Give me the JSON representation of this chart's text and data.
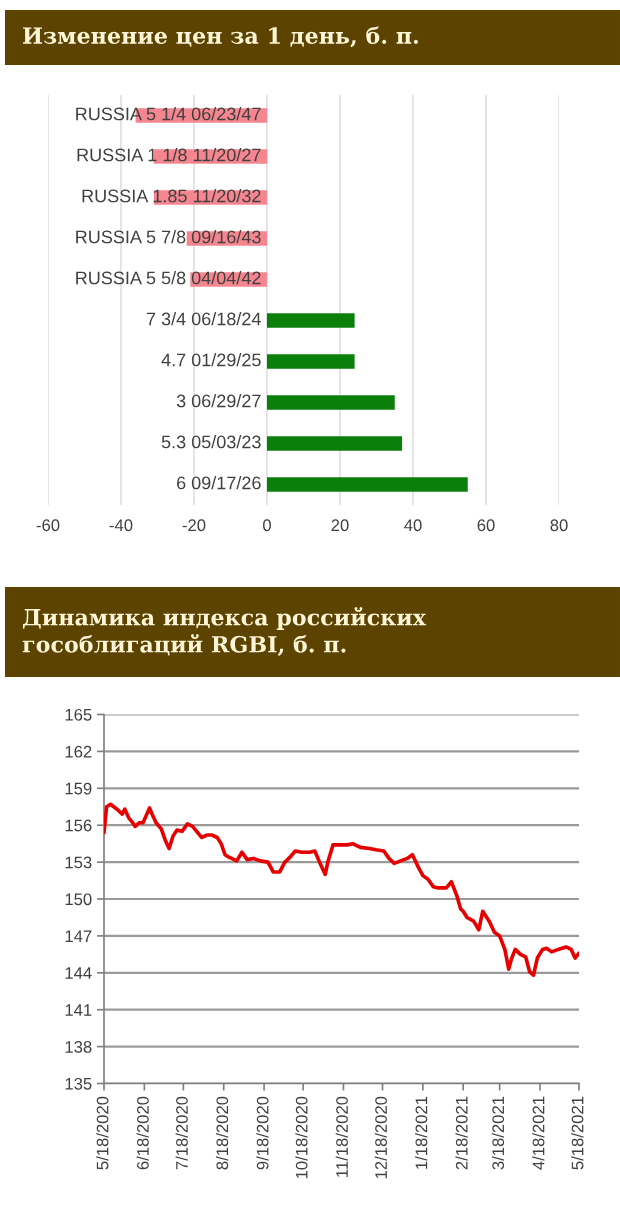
{
  "chart_data": [
    {
      "type": "bar",
      "title": "Изменение цен за 1 день, б. п.",
      "orientation": "horizontal",
      "categories": [
        "RUSSIA 5 1/4 06/23/47",
        "RUSSIA 1 1/8 11/20/27",
        "RUSSIA 1.85 11/20/32",
        "RUSSIA 5 7/8 09/16/43",
        "RUSSIA 5 5/8 04/04/42",
        "7 3/4 06/18/24",
        "4.7 01/29/25",
        "3 06/29/27",
        "5.3 05/03/23",
        "6 09/17/26"
      ],
      "values": [
        -36,
        -31,
        -31,
        -22,
        -21,
        24,
        24,
        35,
        37,
        55
      ],
      "colors": [
        "#f5868f",
        "#f5868f",
        "#f5868f",
        "#f5868f",
        "#f5868f",
        "#0a7f0a",
        "#0a7f0a",
        "#0a7f0a",
        "#0a7f0a",
        "#0a7f0a"
      ],
      "xlim": [
        -60,
        80
      ],
      "xticks": [
        -60,
        -40,
        -20,
        0,
        20,
        40,
        60,
        80
      ],
      "grid": "x"
    },
    {
      "type": "line",
      "title": "Динамика индекса российских\nгособлигаций RGBI, б. п.",
      "x": [
        "2020-05-18",
        "2020-05-20",
        "2020-05-23",
        "2020-05-28",
        "2020-06-01",
        "2020-06-03",
        "2020-06-06",
        "2020-06-09",
        "2020-06-11",
        "2020-06-14",
        "2020-06-17",
        "2020-06-22",
        "2020-06-24",
        "2020-06-27",
        "2020-07-01",
        "2020-07-04",
        "2020-07-07",
        "2020-07-10",
        "2020-07-13",
        "2020-07-17",
        "2020-07-21",
        "2020-07-25",
        "2020-07-29",
        "2020-08-01",
        "2020-08-05",
        "2020-08-09",
        "2020-08-13",
        "2020-08-16",
        "2020-08-19",
        "2020-08-22",
        "2020-08-28",
        "2020-09-01",
        "2020-09-05",
        "2020-09-10",
        "2020-09-15",
        "2020-09-21",
        "2020-09-25",
        "2020-09-30",
        "2020-10-04",
        "2020-10-08",
        "2020-10-12",
        "2020-10-17",
        "2020-10-23",
        "2020-10-27",
        "2020-10-31",
        "2020-11-04",
        "2020-11-06",
        "2020-11-10",
        "2020-11-15",
        "2020-11-21",
        "2020-11-25",
        "2020-12-01",
        "2020-12-08",
        "2020-12-13",
        "2020-12-19",
        "2020-12-23",
        "2020-12-27",
        "2021-01-01",
        "2021-01-06",
        "2021-01-10",
        "2021-01-14",
        "2021-01-18",
        "2021-01-22",
        "2021-01-26",
        "2021-01-30",
        "2021-02-05",
        "2021-02-09",
        "2021-02-13",
        "2021-02-16",
        "2021-02-18",
        "2021-02-21",
        "2021-02-26",
        "2021-03-02",
        "2021-03-05",
        "2021-03-10",
        "2021-03-14",
        "2021-03-18",
        "2021-03-22",
        "2021-03-25",
        "2021-03-27",
        "2021-03-30",
        "2021-04-03",
        "2021-04-07",
        "2021-04-10",
        "2021-04-13",
        "2021-04-16",
        "2021-04-20",
        "2021-04-23",
        "2021-04-27",
        "2021-05-02",
        "2021-05-08",
        "2021-05-12",
        "2021-05-15",
        "2021-05-18"
      ],
      "series": [
        {
          "color": "#e60000",
          "values": [
            155.4,
            157.5,
            157.7,
            157.3,
            156.9,
            157.3,
            156.6,
            156.2,
            155.9,
            156.2,
            156.2,
            157.4,
            156.9,
            156.2,
            155.7,
            154.8,
            154.1,
            155.1,
            155.6,
            155.5,
            156.1,
            155.9,
            155.4,
            155.0,
            155.2,
            155.2,
            155.0,
            154.5,
            153.6,
            153.4,
            153.1,
            153.8,
            153.2,
            153.3,
            153.1,
            153.0,
            152.2,
            152.2,
            153.0,
            153.4,
            153.9,
            153.8,
            153.8,
            153.9,
            152.9,
            152.0,
            153.0,
            154.4,
            154.4,
            154.4,
            154.5,
            154.2,
            154.1,
            154.0,
            153.9,
            153.3,
            152.9,
            153.1,
            153.3,
            153.6,
            152.7,
            151.9,
            151.6,
            151.0,
            150.9,
            150.9,
            151.4,
            150.3,
            149.2,
            149.0,
            148.5,
            148.2,
            147.5,
            149.0,
            148.2,
            147.3,
            147.0,
            145.9,
            144.3,
            145.1,
            145.9,
            145.5,
            145.3,
            144.1,
            143.8,
            145.2,
            145.9,
            146.0,
            145.7,
            145.9,
            146.1,
            145.9,
            145.2,
            145.6
          ]
        }
      ],
      "xlim": [
        "2020-05-18",
        "2021-05-18"
      ],
      "xticks": [
        {
          "value": "2020-05-18",
          "label": "5/18/2020"
        },
        {
          "value": "2020-06-18",
          "label": "6/18/2020"
        },
        {
          "value": "2020-07-18",
          "label": "7/18/2020"
        },
        {
          "value": "2020-08-18",
          "label": "8/18/2020"
        },
        {
          "value": "2020-09-18",
          "label": "9/18/2020"
        },
        {
          "value": "2020-10-18",
          "label": "10/18/2020"
        },
        {
          "value": "2020-11-18",
          "label": "11/18/2020"
        },
        {
          "value": "2020-12-18",
          "label": "12/18/2020"
        },
        {
          "value": "2021-01-18",
          "label": "1/18/2021"
        },
        {
          "value": "2021-02-18",
          "label": "2/18/2021"
        },
        {
          "value": "2021-03-18",
          "label": "3/18/2021"
        },
        {
          "value": "2021-04-18",
          "label": "4/18/2021"
        },
        {
          "value": "2021-05-18",
          "label": "5/18/2021"
        }
      ],
      "ylim": [
        135,
        165
      ],
      "yticks": [
        135,
        138,
        141,
        144,
        147,
        150,
        153,
        156,
        159,
        162,
        165
      ],
      "grid": "y"
    }
  ]
}
